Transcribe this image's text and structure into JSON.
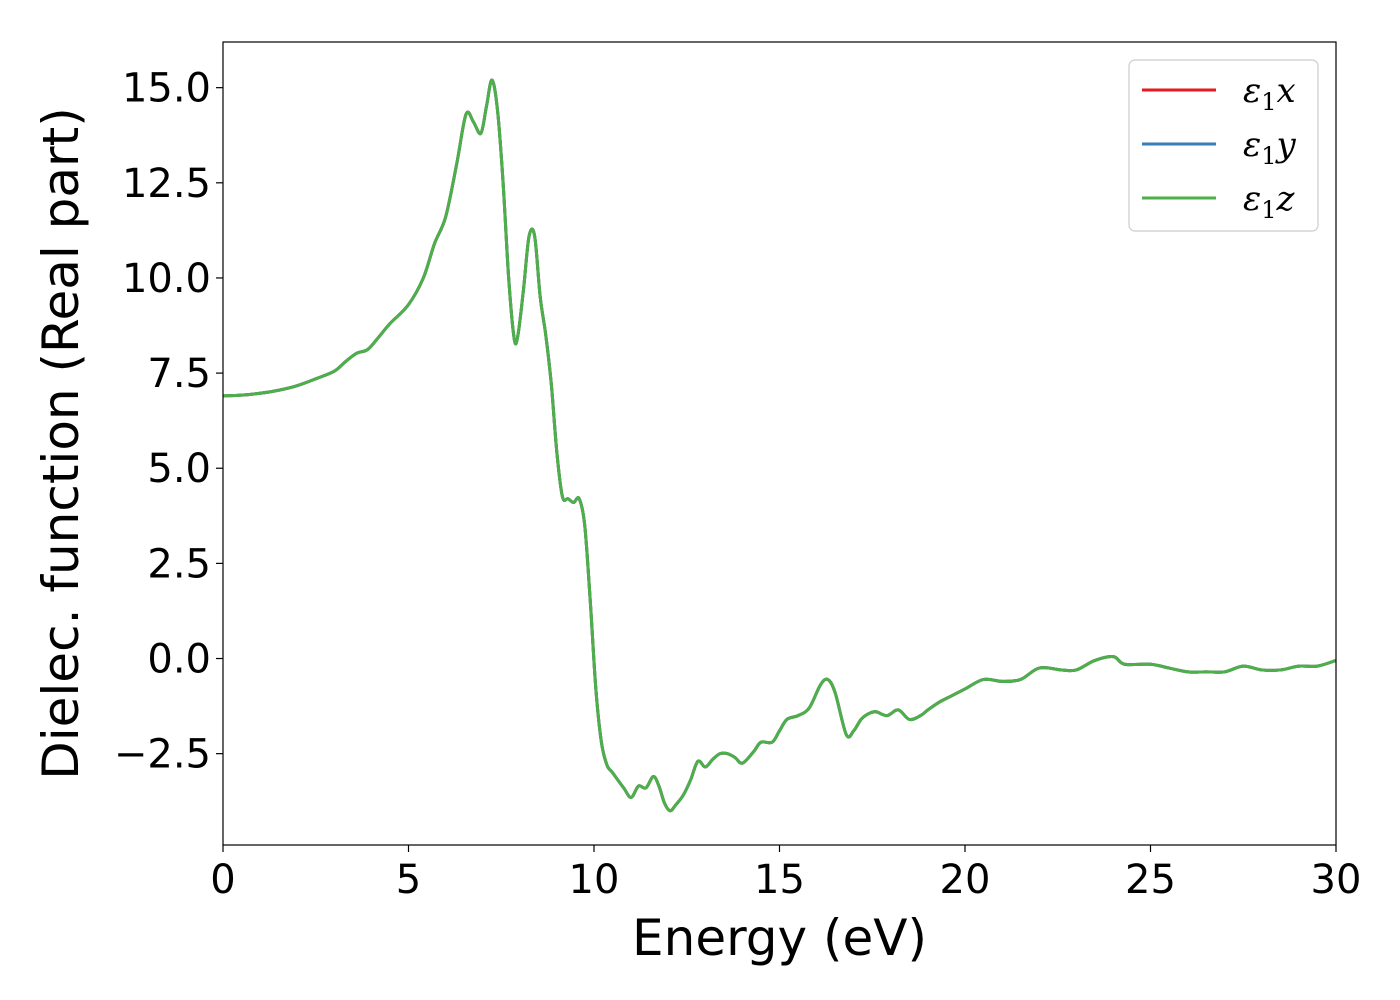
{
  "chart_data": {
    "type": "line",
    "title": "",
    "xlabel": "Energy (eV)",
    "ylabel": "Dielec. function (Real part)",
    "xlim": [
      0,
      30
    ],
    "ylim": [
      -4.9,
      16.2
    ],
    "xticks": [
      0,
      5,
      10,
      15,
      20,
      25,
      30
    ],
    "xtick_labels": [
      "0",
      "5",
      "10",
      "15",
      "20",
      "25",
      "30"
    ],
    "yticks": [
      -2.5,
      0.0,
      2.5,
      5.0,
      7.5,
      10.0,
      12.5,
      15.0
    ],
    "ytick_labels": [
      "−2.5",
      "0.0",
      "2.5",
      "5.0",
      "7.5",
      "10.0",
      "12.5",
      "15.0"
    ],
    "grid": false,
    "legend_position": "top-right",
    "series": [
      {
        "name": "ε",
        "sub": "1",
        "suffix": "x",
        "color": "#e41a1c",
        "x": [
          0,
          0.5,
          1,
          1.5,
          2,
          2.5,
          3,
          3.3,
          3.6,
          3.9,
          4.2,
          4.5,
          5,
          5.4,
          5.7,
          6.0,
          6.3,
          6.55,
          6.75,
          6.95,
          7.1,
          7.25,
          7.4,
          7.55,
          7.7,
          7.85,
          7.95,
          8.1,
          8.25,
          8.4,
          8.55,
          8.7,
          8.85,
          9.0,
          9.15,
          9.3,
          9.45,
          9.6,
          9.75,
          9.9,
          10.05,
          10.2,
          10.35,
          10.5,
          10.8,
          11.0,
          11.2,
          11.4,
          11.6,
          11.75,
          11.9,
          12.05,
          12.2,
          12.4,
          12.6,
          12.8,
          13.0,
          13.2,
          13.4,
          13.6,
          13.8,
          14.0,
          14.3,
          14.5,
          14.8,
          15.0,
          15.2,
          15.5,
          15.8,
          16.1,
          16.3,
          16.5,
          16.8,
          17.0,
          17.2,
          17.4,
          17.6,
          17.9,
          18.2,
          18.5,
          18.8,
          19.0,
          19.3,
          19.6,
          20.0,
          20.5,
          21.0,
          21.5,
          22.0,
          22.6,
          23.0,
          23.5,
          24.0,
          24.3,
          25.0,
          25.5,
          26.0,
          26.5,
          27.0,
          27.5,
          28.0,
          28.5,
          29.0,
          29.5,
          30.0
        ],
        "y": [
          6.9,
          6.92,
          6.97,
          7.05,
          7.17,
          7.35,
          7.55,
          7.8,
          8.02,
          8.12,
          8.45,
          8.8,
          9.3,
          10.0,
          10.9,
          11.6,
          13.0,
          14.3,
          14.1,
          13.8,
          14.5,
          15.2,
          14.4,
          12.5,
          10.0,
          8.4,
          8.5,
          9.7,
          11.1,
          11.1,
          9.5,
          8.5,
          7.2,
          5.4,
          4.25,
          4.2,
          4.1,
          4.2,
          3.5,
          1.5,
          -0.8,
          -2.2,
          -2.8,
          -3.0,
          -3.4,
          -3.65,
          -3.35,
          -3.4,
          -3.1,
          -3.35,
          -3.8,
          -4.0,
          -3.85,
          -3.6,
          -3.2,
          -2.7,
          -2.85,
          -2.65,
          -2.5,
          -2.5,
          -2.6,
          -2.75,
          -2.45,
          -2.2,
          -2.2,
          -1.9,
          -1.6,
          -1.5,
          -1.3,
          -0.7,
          -0.55,
          -0.9,
          -2.0,
          -1.9,
          -1.6,
          -1.45,
          -1.4,
          -1.5,
          -1.35,
          -1.6,
          -1.5,
          -1.35,
          -1.15,
          -1.0,
          -0.8,
          -0.55,
          -0.6,
          -0.55,
          -0.25,
          -0.3,
          -0.3,
          -0.05,
          0.05,
          -0.15,
          -0.15,
          -0.25,
          -0.35,
          -0.35,
          -0.35,
          -0.2,
          -0.3,
          -0.3,
          -0.2,
          -0.2,
          -0.05
        ]
      },
      {
        "name": "ε",
        "sub": "1",
        "suffix": "y",
        "color": "#377eb8",
        "x": [
          0,
          0.5,
          1,
          1.5,
          2,
          2.5,
          3,
          3.3,
          3.6,
          3.9,
          4.2,
          4.5,
          5,
          5.4,
          5.7,
          6.0,
          6.3,
          6.55,
          6.75,
          6.95,
          7.1,
          7.25,
          7.4,
          7.55,
          7.7,
          7.85,
          7.95,
          8.1,
          8.25,
          8.4,
          8.55,
          8.7,
          8.85,
          9.0,
          9.15,
          9.3,
          9.45,
          9.6,
          9.75,
          9.9,
          10.05,
          10.2,
          10.35,
          10.5,
          10.8,
          11.0,
          11.2,
          11.4,
          11.6,
          11.75,
          11.9,
          12.05,
          12.2,
          12.4,
          12.6,
          12.8,
          13.0,
          13.2,
          13.4,
          13.6,
          13.8,
          14.0,
          14.3,
          14.5,
          14.8,
          15.0,
          15.2,
          15.5,
          15.8,
          16.1,
          16.3,
          16.5,
          16.8,
          17.0,
          17.2,
          17.4,
          17.6,
          17.9,
          18.2,
          18.5,
          18.8,
          19.0,
          19.3,
          19.6,
          20.0,
          20.5,
          21.0,
          21.5,
          22.0,
          22.6,
          23.0,
          23.5,
          24.0,
          24.3,
          25.0,
          25.5,
          26.0,
          26.5,
          27.0,
          27.5,
          28.0,
          28.5,
          29.0,
          29.5,
          30.0
        ],
        "y": [
          6.9,
          6.92,
          6.97,
          7.05,
          7.17,
          7.35,
          7.55,
          7.8,
          8.02,
          8.12,
          8.45,
          8.8,
          9.3,
          10.0,
          10.9,
          11.6,
          13.0,
          14.3,
          14.1,
          13.8,
          14.5,
          15.2,
          14.4,
          12.5,
          10.0,
          8.4,
          8.5,
          9.7,
          11.1,
          11.1,
          9.5,
          8.5,
          7.2,
          5.4,
          4.25,
          4.2,
          4.1,
          4.2,
          3.5,
          1.5,
          -0.8,
          -2.2,
          -2.8,
          -3.0,
          -3.4,
          -3.65,
          -3.35,
          -3.4,
          -3.1,
          -3.35,
          -3.8,
          -4.0,
          -3.85,
          -3.6,
          -3.2,
          -2.7,
          -2.85,
          -2.65,
          -2.5,
          -2.5,
          -2.6,
          -2.75,
          -2.45,
          -2.2,
          -2.2,
          -1.9,
          -1.6,
          -1.5,
          -1.3,
          -0.7,
          -0.55,
          -0.9,
          -2.0,
          -1.9,
          -1.6,
          -1.45,
          -1.4,
          -1.5,
          -1.35,
          -1.6,
          -1.5,
          -1.35,
          -1.15,
          -1.0,
          -0.8,
          -0.55,
          -0.6,
          -0.55,
          -0.25,
          -0.3,
          -0.3,
          -0.05,
          0.05,
          -0.15,
          -0.15,
          -0.25,
          -0.35,
          -0.35,
          -0.35,
          -0.2,
          -0.3,
          -0.3,
          -0.2,
          -0.2,
          -0.05
        ]
      },
      {
        "name": "ε",
        "sub": "1",
        "suffix": "z",
        "color": "#4daf4a",
        "x": [
          0,
          0.5,
          1,
          1.5,
          2,
          2.5,
          3,
          3.3,
          3.6,
          3.9,
          4.2,
          4.5,
          5,
          5.4,
          5.7,
          6.0,
          6.3,
          6.55,
          6.75,
          6.95,
          7.1,
          7.25,
          7.4,
          7.55,
          7.7,
          7.85,
          7.95,
          8.1,
          8.25,
          8.4,
          8.55,
          8.7,
          8.85,
          9.0,
          9.15,
          9.3,
          9.45,
          9.6,
          9.75,
          9.9,
          10.05,
          10.2,
          10.35,
          10.5,
          10.8,
          11.0,
          11.2,
          11.4,
          11.6,
          11.75,
          11.9,
          12.05,
          12.2,
          12.4,
          12.6,
          12.8,
          13.0,
          13.2,
          13.4,
          13.6,
          13.8,
          14.0,
          14.3,
          14.5,
          14.8,
          15.0,
          15.2,
          15.5,
          15.8,
          16.1,
          16.3,
          16.5,
          16.8,
          17.0,
          17.2,
          17.4,
          17.6,
          17.9,
          18.2,
          18.5,
          18.8,
          19.0,
          19.3,
          19.6,
          20.0,
          20.5,
          21.0,
          21.5,
          22.0,
          22.6,
          23.0,
          23.5,
          24.0,
          24.3,
          25.0,
          25.5,
          26.0,
          26.5,
          27.0,
          27.5,
          28.0,
          28.5,
          29.0,
          29.5,
          30.0
        ],
        "y": [
          6.9,
          6.92,
          6.97,
          7.05,
          7.17,
          7.35,
          7.55,
          7.8,
          8.02,
          8.12,
          8.45,
          8.8,
          9.3,
          10.0,
          10.9,
          11.6,
          13.0,
          14.3,
          14.1,
          13.8,
          14.5,
          15.2,
          14.4,
          12.5,
          10.0,
          8.4,
          8.5,
          9.7,
          11.1,
          11.1,
          9.5,
          8.5,
          7.2,
          5.4,
          4.25,
          4.2,
          4.1,
          4.2,
          3.5,
          1.5,
          -0.8,
          -2.2,
          -2.8,
          -3.0,
          -3.4,
          -3.65,
          -3.35,
          -3.4,
          -3.1,
          -3.35,
          -3.8,
          -4.0,
          -3.85,
          -3.6,
          -3.2,
          -2.7,
          -2.85,
          -2.65,
          -2.5,
          -2.5,
          -2.6,
          -2.75,
          -2.45,
          -2.2,
          -2.2,
          -1.9,
          -1.6,
          -1.5,
          -1.3,
          -0.7,
          -0.55,
          -0.9,
          -2.0,
          -1.9,
          -1.6,
          -1.45,
          -1.4,
          -1.5,
          -1.35,
          -1.6,
          -1.5,
          -1.35,
          -1.15,
          -1.0,
          -0.8,
          -0.55,
          -0.6,
          -0.55,
          -0.25,
          -0.3,
          -0.3,
          -0.05,
          0.05,
          -0.15,
          -0.15,
          -0.25,
          -0.35,
          -0.35,
          -0.35,
          -0.2,
          -0.3,
          -0.3,
          -0.2,
          -0.2,
          -0.05
        ]
      }
    ]
  }
}
